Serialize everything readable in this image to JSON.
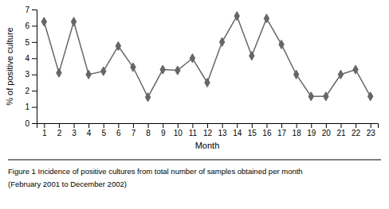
{
  "chart_data": {
    "type": "line",
    "x": [
      1,
      2,
      3,
      4,
      5,
      6,
      7,
      8,
      9,
      10,
      11,
      12,
      13,
      14,
      15,
      16,
      17,
      18,
      19,
      20,
      21,
      22,
      23
    ],
    "values": [
      6.25,
      3.1,
      6.25,
      3.0,
      3.2,
      4.75,
      3.45,
      1.6,
      3.3,
      3.25,
      4.0,
      2.5,
      5.0,
      6.6,
      4.15,
      6.45,
      4.85,
      3.0,
      1.65,
      1.65,
      3.0,
      3.3,
      1.65
    ],
    "xlabel": "Month",
    "ylabel": "% of positive culture",
    "xlim": [
      0.5,
      23.5
    ],
    "ylim": [
      0,
      7
    ],
    "xticks": [
      1,
      2,
      3,
      4,
      5,
      6,
      7,
      8,
      9,
      10,
      11,
      12,
      13,
      14,
      15,
      16,
      17,
      18,
      19,
      20,
      21,
      22,
      23
    ],
    "yticks": [
      0,
      1,
      2,
      3,
      4,
      5,
      6,
      7
    ],
    "color": "#666666",
    "marker": "diamond",
    "annotations": [
      "Figure 1 Incidence of positive cultures from total number of samples obtained per month",
      "(February 2001 to December 2002)"
    ]
  }
}
